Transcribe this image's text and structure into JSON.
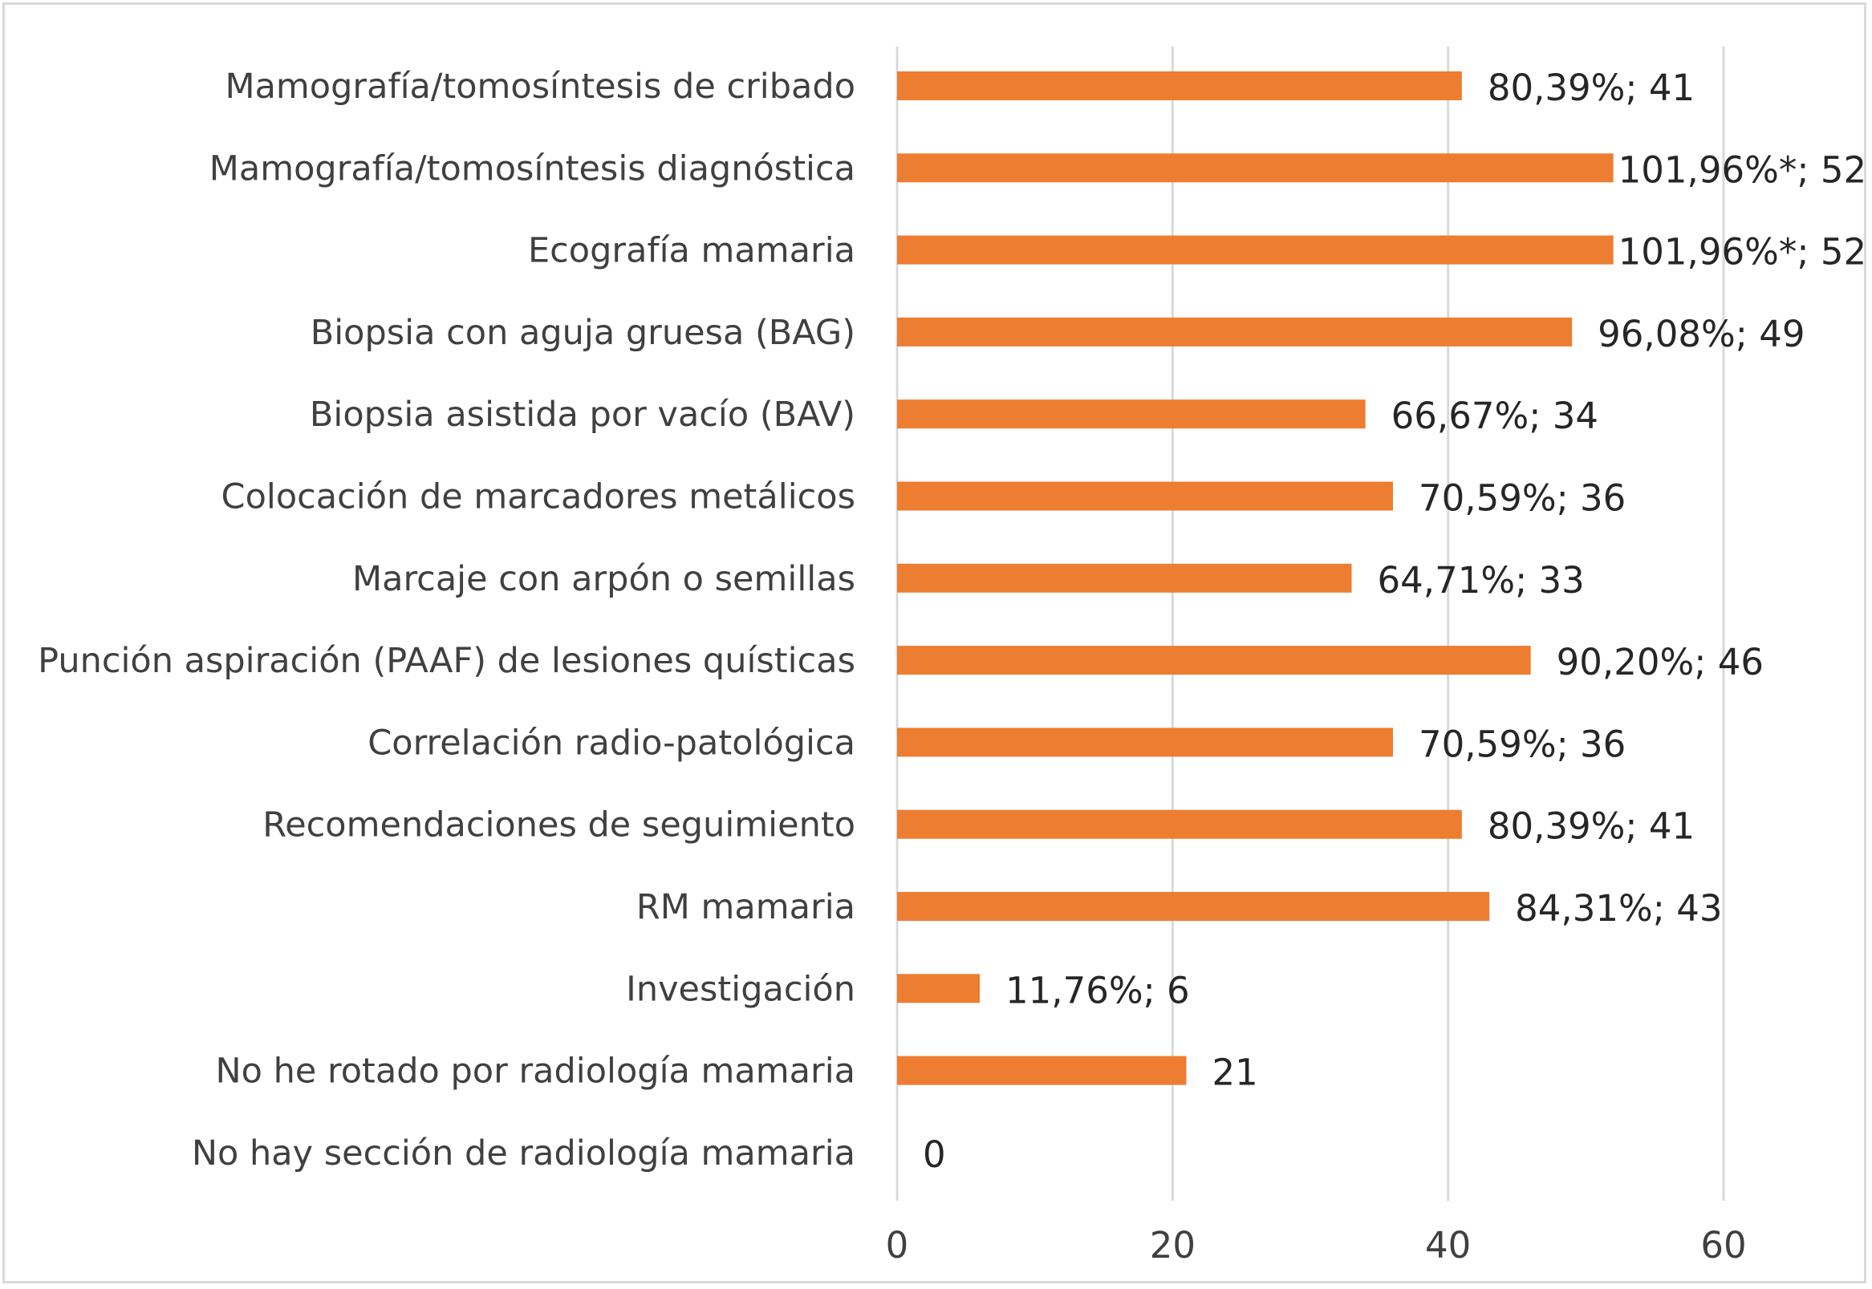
{
  "chart_data": {
    "type": "bar",
    "orientation": "horizontal",
    "categories": [
      "Mamografía/tomosíntesis de cribado",
      "Mamografía/tomosíntesis diagnóstica",
      "Ecografía mamaria",
      "Biopsia con aguja gruesa (BAG)",
      "Biopsia asistida por vacío (BAV)",
      "Colocación de marcadores metálicos",
      "Marcaje con arpón o semillas",
      "Punción aspiración (PAAF) de lesiones quísticas",
      "Correlación radio-patológica",
      "Recomendaciones de seguimiento",
      "RM mamaria",
      "Investigación",
      "No he rotado por radiología mamaria",
      "No hay sección de radiología mamaria"
    ],
    "values": [
      41,
      52,
      52,
      49,
      34,
      36,
      33,
      46,
      36,
      41,
      43,
      6,
      21,
      0
    ],
    "data_labels": [
      "80,39%; 41",
      "101,96%*; 52",
      "101,96%*; 52",
      "96,08%; 49",
      "66,67%; 34",
      "70,59%; 36",
      "64,71%; 33",
      "90,20%; 46",
      "70,59%; 36",
      "80,39%; 41",
      "84,31%; 43",
      "11,76%; 6",
      "21",
      "0"
    ],
    "xlim": [
      0,
      60
    ],
    "x_ticks": [
      "0",
      "20",
      "40",
      "60"
    ],
    "grid": true,
    "bar_color": "#ED7D31",
    "legend": "none"
  }
}
